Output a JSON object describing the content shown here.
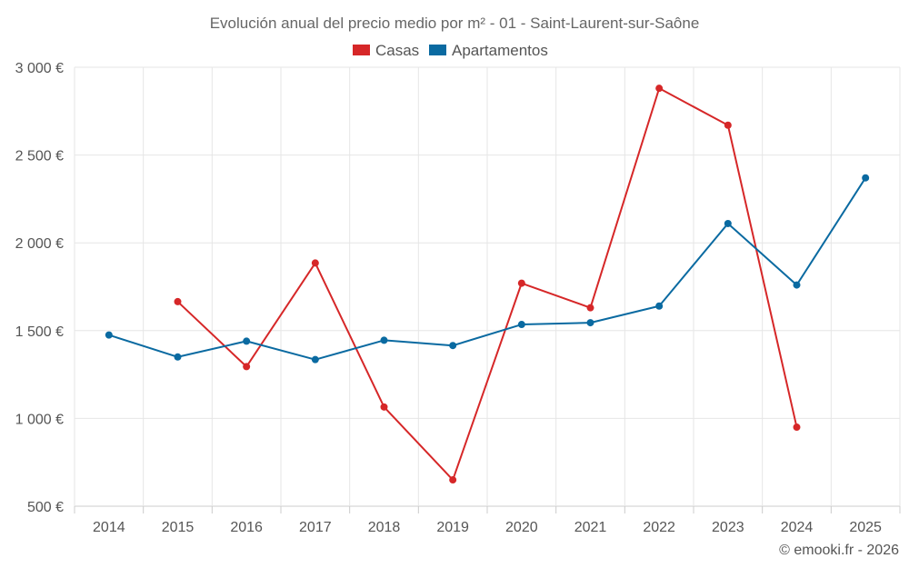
{
  "chart_data": {
    "type": "line",
    "title": "Evolución anual del precio medio por m² - 01 - Saint-Laurent-sur-Saône",
    "categories": [
      "2014",
      "2015",
      "2016",
      "2017",
      "2018",
      "2019",
      "2020",
      "2021",
      "2022",
      "2023",
      "2024",
      "2025"
    ],
    "series": [
      {
        "name": "Casas",
        "color": "#d62728",
        "values": [
          null,
          1665,
          1295,
          1885,
          1065,
          650,
          1770,
          1630,
          2880,
          2670,
          950,
          null
        ]
      },
      {
        "name": "Apartamentos",
        "color": "#0a6aa1",
        "values": [
          1475,
          1350,
          1440,
          1335,
          1445,
          1415,
          1535,
          1545,
          1640,
          2110,
          1760,
          2370
        ]
      }
    ],
    "ylim": [
      500,
      3000
    ],
    "yticks": [
      500,
      1000,
      1500,
      2000,
      2500,
      3000
    ],
    "ytick_labels": [
      "500 €",
      "1 000 €",
      "1 500 €",
      "2 000 €",
      "2 500 €",
      "3 000 €"
    ],
    "xlabel": "",
    "ylabel": "",
    "grid": true,
    "legend_position": "top-center",
    "credit": "© emooki.fr - 2026"
  }
}
